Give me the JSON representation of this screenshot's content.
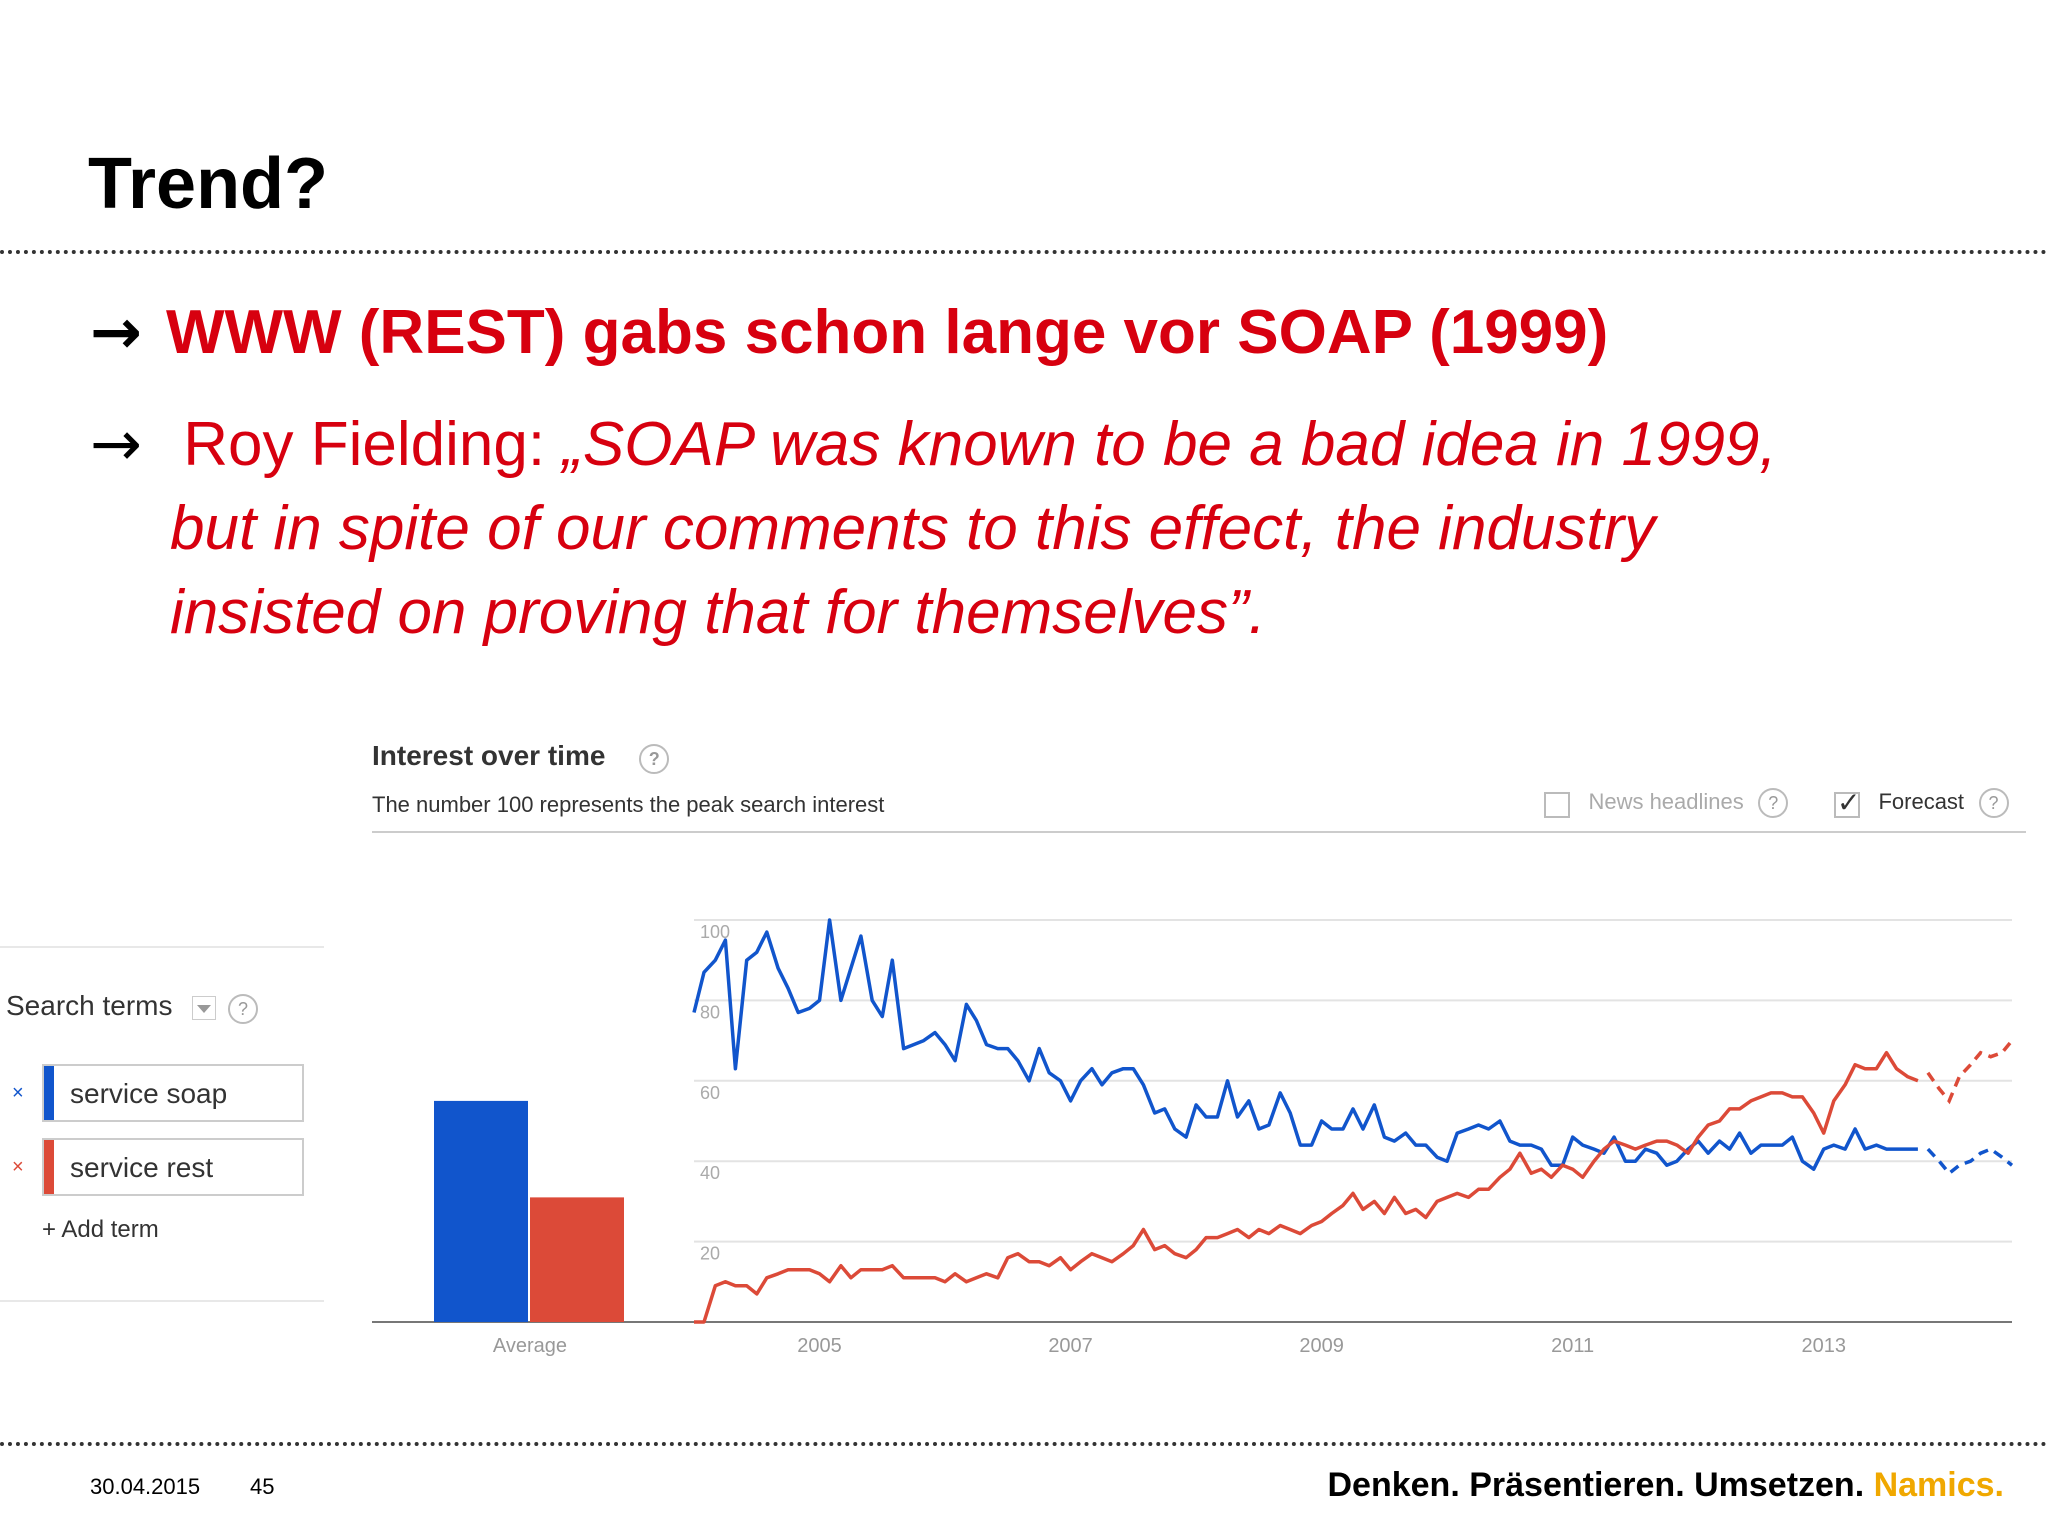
{
  "slide": {
    "title": "Trend?",
    "bullet1": "WWW (REST) gabs schon lange vor SOAP (1999)",
    "bullet2_lead": " Roy Fielding: ",
    "bullet2_quote": "„SOAP was known to be a bad idea in 1999,",
    "bullet2_cont1": "but in spite of our comments to this effect, the industry",
    "bullet2_cont2": "insisted on proving that for themselves”.",
    "arrow_glyph": "→"
  },
  "trends": {
    "title": "Interest over time",
    "subtitle": "The number 100 represents the peak search interest",
    "news_label": "News headlines",
    "forecast_label": "Forecast",
    "help_glyph": "?",
    "search_terms_label": "Search terms",
    "terms": [
      {
        "label": "service soap",
        "color": "#1155cc"
      },
      {
        "label": "service rest",
        "color": "#dc4a38"
      }
    ],
    "remove_glyph": "×",
    "add_term_label": "+ Add term"
  },
  "footer": {
    "date": "30.04.2015",
    "page": "45",
    "tagline": "Denken. Präsentieren. Umsetzen. ",
    "brand": "Namics."
  },
  "chart_data": {
    "type": "line",
    "title": "Interest over time",
    "ylim": [
      0,
      100
    ],
    "yticks": [
      20,
      40,
      60,
      80,
      100
    ],
    "xticks": [
      "2005",
      "2007",
      "2009",
      "2011",
      "2013"
    ],
    "xrange": [
      2004.0,
      2014.5
    ],
    "forecast_from": 2013.8,
    "average_label": "Average",
    "average": [
      {
        "name": "service soap",
        "value": 55,
        "color": "#1155cc"
      },
      {
        "name": "service rest",
        "value": 31,
        "color": "#dc4a38"
      }
    ],
    "series": [
      {
        "name": "service soap",
        "color": "#1155cc",
        "points": [
          [
            2004.0,
            77
          ],
          [
            2004.08,
            87
          ],
          [
            2004.17,
            90
          ],
          [
            2004.25,
            95
          ],
          [
            2004.33,
            63
          ],
          [
            2004.42,
            90
          ],
          [
            2004.5,
            92
          ],
          [
            2004.58,
            97
          ],
          [
            2004.67,
            88
          ],
          [
            2004.75,
            83
          ],
          [
            2004.83,
            77
          ],
          [
            2004.92,
            78
          ],
          [
            2005.0,
            80
          ],
          [
            2005.08,
            100
          ],
          [
            2005.17,
            80
          ],
          [
            2005.25,
            88
          ],
          [
            2005.33,
            96
          ],
          [
            2005.42,
            80
          ],
          [
            2005.5,
            76
          ],
          [
            2005.58,
            90
          ],
          [
            2005.67,
            68
          ],
          [
            2005.75,
            69
          ],
          [
            2005.83,
            70
          ],
          [
            2005.92,
            72
          ],
          [
            2006.0,
            69
          ],
          [
            2006.08,
            65
          ],
          [
            2006.17,
            79
          ],
          [
            2006.25,
            75
          ],
          [
            2006.33,
            69
          ],
          [
            2006.42,
            68
          ],
          [
            2006.5,
            68
          ],
          [
            2006.58,
            65
          ],
          [
            2006.67,
            60
          ],
          [
            2006.75,
            68
          ],
          [
            2006.83,
            62
          ],
          [
            2006.92,
            60
          ],
          [
            2007.0,
            55
          ],
          [
            2007.08,
            60
          ],
          [
            2007.17,
            63
          ],
          [
            2007.25,
            59
          ],
          [
            2007.33,
            62
          ],
          [
            2007.42,
            63
          ],
          [
            2007.5,
            63
          ],
          [
            2007.58,
            59
          ],
          [
            2007.67,
            52
          ],
          [
            2007.75,
            53
          ],
          [
            2007.83,
            48
          ],
          [
            2007.92,
            46
          ],
          [
            2008.0,
            54
          ],
          [
            2008.08,
            51
          ],
          [
            2008.17,
            51
          ],
          [
            2008.25,
            60
          ],
          [
            2008.33,
            51
          ],
          [
            2008.42,
            55
          ],
          [
            2008.5,
            48
          ],
          [
            2008.58,
            49
          ],
          [
            2008.67,
            57
          ],
          [
            2008.75,
            52
          ],
          [
            2008.83,
            44
          ],
          [
            2008.92,
            44
          ],
          [
            2009.0,
            50
          ],
          [
            2009.08,
            48
          ],
          [
            2009.17,
            48
          ],
          [
            2009.25,
            53
          ],
          [
            2009.33,
            48
          ],
          [
            2009.42,
            54
          ],
          [
            2009.5,
            46
          ],
          [
            2009.58,
            45
          ],
          [
            2009.67,
            47
          ],
          [
            2009.75,
            44
          ],
          [
            2009.83,
            44
          ],
          [
            2009.92,
            41
          ],
          [
            2010.0,
            40
          ],
          [
            2010.08,
            47
          ],
          [
            2010.17,
            48
          ],
          [
            2010.25,
            49
          ],
          [
            2010.33,
            48
          ],
          [
            2010.42,
            50
          ],
          [
            2010.5,
            45
          ],
          [
            2010.58,
            44
          ],
          [
            2010.67,
            44
          ],
          [
            2010.75,
            43
          ],
          [
            2010.83,
            39
          ],
          [
            2010.92,
            39
          ],
          [
            2011.0,
            46
          ],
          [
            2011.08,
            44
          ],
          [
            2011.17,
            43
          ],
          [
            2011.25,
            42
          ],
          [
            2011.33,
            46
          ],
          [
            2011.42,
            40
          ],
          [
            2011.5,
            40
          ],
          [
            2011.58,
            43
          ],
          [
            2011.67,
            42
          ],
          [
            2011.75,
            39
          ],
          [
            2011.83,
            40
          ],
          [
            2011.92,
            43
          ],
          [
            2012.0,
            45
          ],
          [
            2012.08,
            42
          ],
          [
            2012.17,
            45
          ],
          [
            2012.25,
            43
          ],
          [
            2012.33,
            47
          ],
          [
            2012.42,
            42
          ],
          [
            2012.5,
            44
          ],
          [
            2012.58,
            44
          ],
          [
            2012.67,
            44
          ],
          [
            2012.75,
            46
          ],
          [
            2012.83,
            40
          ],
          [
            2012.92,
            38
          ],
          [
            2013.0,
            43
          ],
          [
            2013.08,
            44
          ],
          [
            2013.17,
            43
          ],
          [
            2013.25,
            48
          ],
          [
            2013.33,
            43
          ],
          [
            2013.42,
            44
          ],
          [
            2013.5,
            43
          ],
          [
            2013.58,
            43
          ],
          [
            2013.67,
            43
          ],
          [
            2013.75,
            43
          ],
          [
            2013.83,
            43
          ],
          [
            2013.92,
            40
          ],
          [
            2014.0,
            37
          ],
          [
            2014.08,
            39
          ],
          [
            2014.17,
            40
          ],
          [
            2014.25,
            42
          ],
          [
            2014.33,
            43
          ],
          [
            2014.42,
            41
          ],
          [
            2014.5,
            39
          ]
        ]
      },
      {
        "name": "service rest",
        "color": "#dc4a38",
        "points": [
          [
            2004.0,
            0
          ],
          [
            2004.08,
            0
          ],
          [
            2004.17,
            9
          ],
          [
            2004.25,
            10
          ],
          [
            2004.33,
            9
          ],
          [
            2004.42,
            9
          ],
          [
            2004.5,
            7
          ],
          [
            2004.58,
            11
          ],
          [
            2004.67,
            12
          ],
          [
            2004.75,
            13
          ],
          [
            2004.83,
            13
          ],
          [
            2004.92,
            13
          ],
          [
            2005.0,
            12
          ],
          [
            2005.08,
            10
          ],
          [
            2005.17,
            14
          ],
          [
            2005.25,
            11
          ],
          [
            2005.33,
            13
          ],
          [
            2005.42,
            13
          ],
          [
            2005.5,
            13
          ],
          [
            2005.58,
            14
          ],
          [
            2005.67,
            11
          ],
          [
            2005.75,
            11
          ],
          [
            2005.83,
            11
          ],
          [
            2005.92,
            11
          ],
          [
            2006.0,
            10
          ],
          [
            2006.08,
            12
          ],
          [
            2006.17,
            10
          ],
          [
            2006.25,
            11
          ],
          [
            2006.33,
            12
          ],
          [
            2006.42,
            11
          ],
          [
            2006.5,
            16
          ],
          [
            2006.58,
            17
          ],
          [
            2006.67,
            15
          ],
          [
            2006.75,
            15
          ],
          [
            2006.83,
            14
          ],
          [
            2006.92,
            16
          ],
          [
            2007.0,
            13
          ],
          [
            2007.08,
            15
          ],
          [
            2007.17,
            17
          ],
          [
            2007.25,
            16
          ],
          [
            2007.33,
            15
          ],
          [
            2007.42,
            17
          ],
          [
            2007.5,
            19
          ],
          [
            2007.58,
            23
          ],
          [
            2007.67,
            18
          ],
          [
            2007.75,
            19
          ],
          [
            2007.83,
            17
          ],
          [
            2007.92,
            16
          ],
          [
            2008.0,
            18
          ],
          [
            2008.08,
            21
          ],
          [
            2008.17,
            21
          ],
          [
            2008.25,
            22
          ],
          [
            2008.33,
            23
          ],
          [
            2008.42,
            21
          ],
          [
            2008.5,
            23
          ],
          [
            2008.58,
            22
          ],
          [
            2008.67,
            24
          ],
          [
            2008.75,
            23
          ],
          [
            2008.83,
            22
          ],
          [
            2008.92,
            24
          ],
          [
            2009.0,
            25
          ],
          [
            2009.08,
            27
          ],
          [
            2009.17,
            29
          ],
          [
            2009.25,
            32
          ],
          [
            2009.33,
            28
          ],
          [
            2009.42,
            30
          ],
          [
            2009.5,
            27
          ],
          [
            2009.58,
            31
          ],
          [
            2009.67,
            27
          ],
          [
            2009.75,
            28
          ],
          [
            2009.83,
            26
          ],
          [
            2009.92,
            30
          ],
          [
            2010.0,
            31
          ],
          [
            2010.08,
            32
          ],
          [
            2010.17,
            31
          ],
          [
            2010.25,
            33
          ],
          [
            2010.33,
            33
          ],
          [
            2010.42,
            36
          ],
          [
            2010.5,
            38
          ],
          [
            2010.58,
            42
          ],
          [
            2010.67,
            37
          ],
          [
            2010.75,
            38
          ],
          [
            2010.83,
            36
          ],
          [
            2010.92,
            39
          ],
          [
            2011.0,
            38
          ],
          [
            2011.08,
            36
          ],
          [
            2011.17,
            40
          ],
          [
            2011.25,
            43
          ],
          [
            2011.33,
            45
          ],
          [
            2011.42,
            44
          ],
          [
            2011.5,
            43
          ],
          [
            2011.58,
            44
          ],
          [
            2011.67,
            45
          ],
          [
            2011.75,
            45
          ],
          [
            2011.83,
            44
          ],
          [
            2011.92,
            42
          ],
          [
            2012.0,
            46
          ],
          [
            2012.08,
            49
          ],
          [
            2012.17,
            50
          ],
          [
            2012.25,
            53
          ],
          [
            2012.33,
            53
          ],
          [
            2012.42,
            55
          ],
          [
            2012.5,
            56
          ],
          [
            2012.58,
            57
          ],
          [
            2012.67,
            57
          ],
          [
            2012.75,
            56
          ],
          [
            2012.83,
            56
          ],
          [
            2012.92,
            52
          ],
          [
            2013.0,
            47
          ],
          [
            2013.08,
            55
          ],
          [
            2013.17,
            59
          ],
          [
            2013.25,
            64
          ],
          [
            2013.33,
            63
          ],
          [
            2013.42,
            63
          ],
          [
            2013.5,
            67
          ],
          [
            2013.58,
            63
          ],
          [
            2013.67,
            61
          ],
          [
            2013.75,
            60
          ],
          [
            2013.83,
            62
          ],
          [
            2013.92,
            58
          ],
          [
            2014.0,
            55
          ],
          [
            2014.08,
            61
          ],
          [
            2014.17,
            64
          ],
          [
            2014.25,
            67
          ],
          [
            2014.33,
            66
          ],
          [
            2014.42,
            67
          ],
          [
            2014.5,
            70
          ]
        ]
      }
    ]
  }
}
